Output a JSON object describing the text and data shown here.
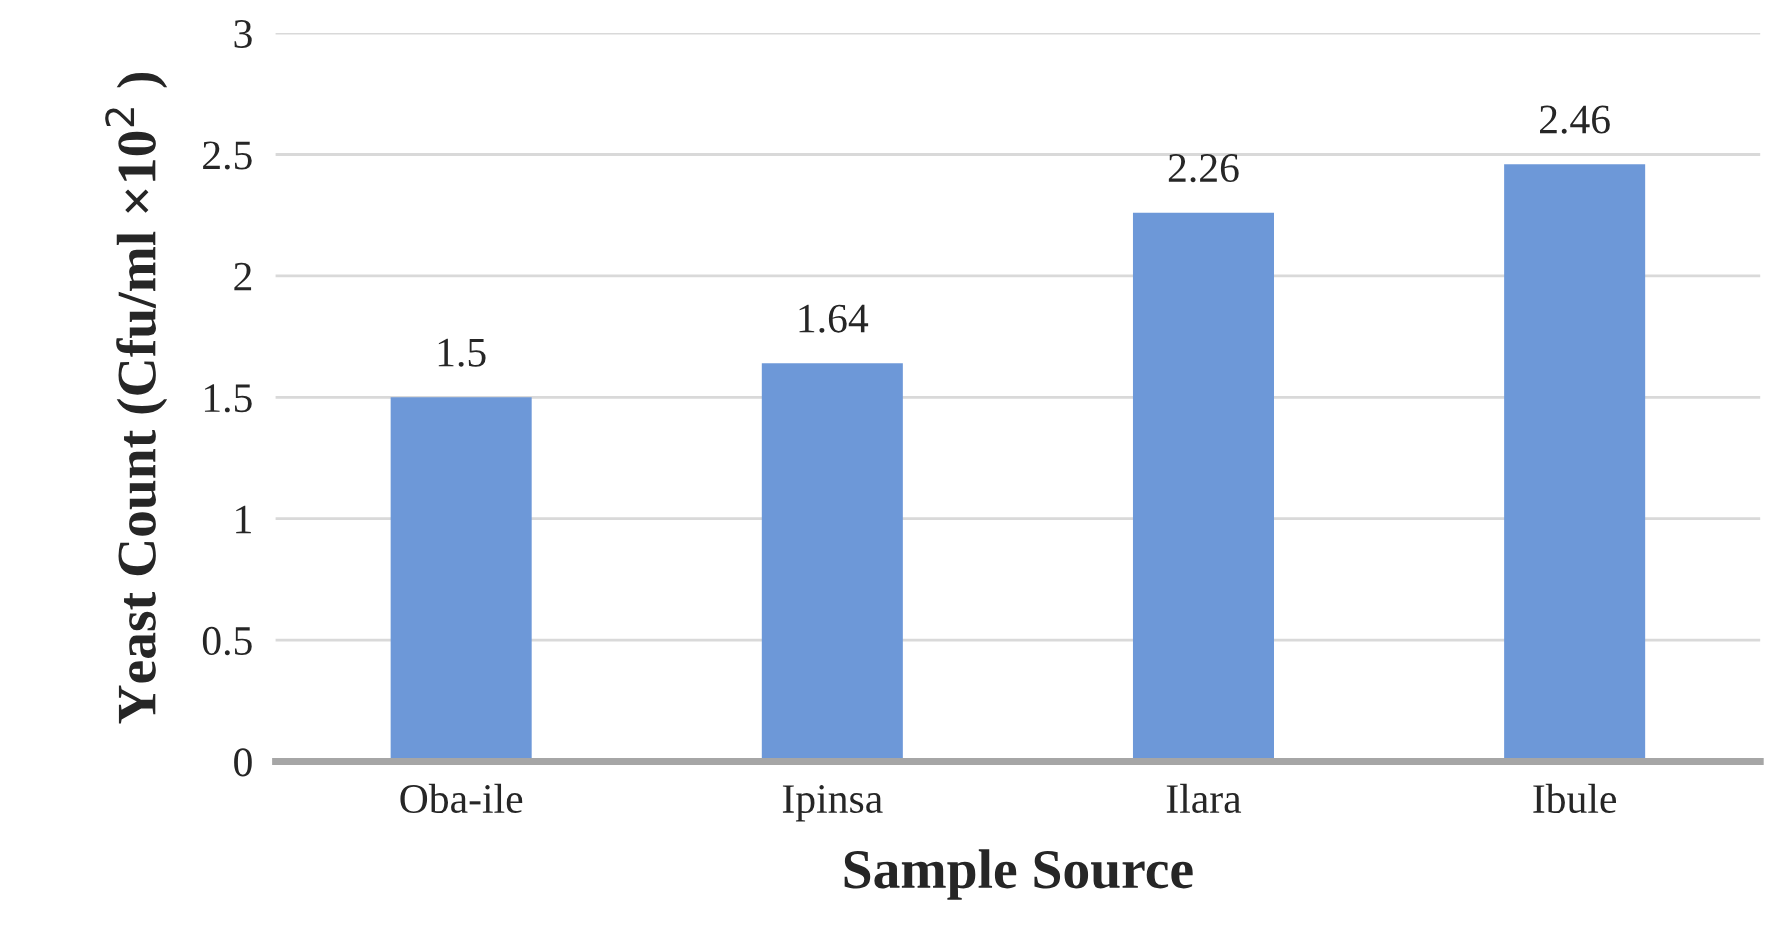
{
  "chart_data": {
    "type": "bar",
    "xlabel": "Sample Source",
    "ylabel": "Yeast Count (Cfu/ml ×10$^{2}$ )",
    "categories": [
      "Oba-ile",
      "Ipinsa",
      "Ilara",
      "Ibule"
    ],
    "values": [
      1.5,
      1.64,
      2.26,
      2.46
    ],
    "color": "#6d98d8",
    "ylim": [
      0,
      3
    ],
    "yticks": [
      0,
      0.5,
      1,
      1.5,
      2,
      2.5,
      3
    ],
    "grid": "y",
    "data_labels": true
  }
}
